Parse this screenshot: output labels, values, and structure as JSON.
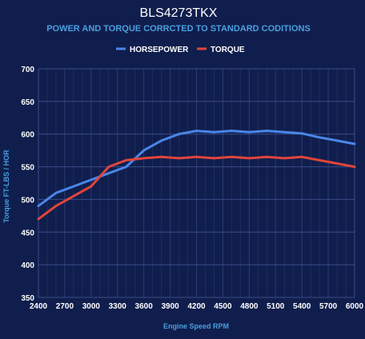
{
  "chart_data": {
    "type": "line",
    "title": "BLS4273TKX",
    "subtitle": "POWER AND TORQUE CORRCTED TO STANDARD CODITIONS",
    "xlabel": "Engine Speed RPM",
    "ylabel": "Torque FT-LBS / HOR",
    "xlim": [
      2400,
      6000
    ],
    "ylim": [
      350,
      700
    ],
    "xticks": [
      2400,
      2700,
      3000,
      3300,
      3600,
      3900,
      4200,
      4500,
      4800,
      5100,
      5400,
      5700,
      6000
    ],
    "yticks": [
      350,
      400,
      450,
      500,
      550,
      600,
      650,
      700
    ],
    "grid": true,
    "legend_position": "top-center",
    "series": [
      {
        "name": "HORSEPOWER",
        "color": "#4a86e8",
        "x": [
          2400,
          2600,
          2800,
          3000,
          3200,
          3400,
          3600,
          3800,
          4000,
          4200,
          4400,
          4600,
          4800,
          5000,
          5200,
          5400,
          5600,
          5800,
          6000
        ],
        "values": [
          490,
          510,
          520,
          530,
          540,
          550,
          575,
          590,
          600,
          605,
          603,
          605,
          603,
          605,
          603,
          601,
          595,
          590,
          585
        ]
      },
      {
        "name": "TORQUE",
        "color": "#e0453a",
        "x": [
          2400,
          2600,
          2800,
          3000,
          3200,
          3400,
          3600,
          3800,
          4000,
          4200,
          4400,
          4600,
          4800,
          5000,
          5200,
          5400,
          5600,
          5800,
          6000
        ],
        "values": [
          470,
          490,
          505,
          520,
          550,
          560,
          563,
          565,
          563,
          565,
          563,
          565,
          563,
          565,
          563,
          565,
          560,
          555,
          550
        ]
      }
    ]
  }
}
